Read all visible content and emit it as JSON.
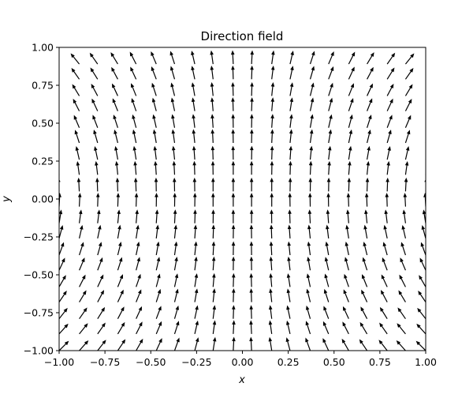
{
  "chart_data": {
    "type": "quiver",
    "title": "Direction field",
    "x_label": "x",
    "y_label": "y",
    "x": [
      -1,
      -0.89,
      -0.79,
      -0.68,
      -0.58,
      -0.47,
      -0.37,
      -0.26,
      -0.16,
      -0.05,
      0.05,
      0.16,
      0.26,
      0.37,
      0.47,
      0.58,
      0.68,
      0.79,
      0.89,
      1
    ],
    "y": [
      -1,
      -0.89,
      -0.79,
      -0.68,
      -0.58,
      -0.47,
      -0.37,
      -0.26,
      -0.16,
      -0.05,
      0.05,
      0.16,
      0.26,
      0.37,
      0.47,
      0.58,
      0.68,
      0.79,
      0.89,
      1
    ],
    "angles": [
      [
        45,
        48,
        52,
        56,
        60,
        65,
        70,
        75,
        81,
        87,
        93,
        99,
        105,
        110,
        115,
        120,
        124,
        128,
        132,
        135
      ],
      [
        48,
        51,
        55,
        59,
        63,
        67,
        72,
        77,
        82,
        87,
        93,
        98,
        103,
        108,
        113,
        117,
        121,
        125,
        129,
        132
      ],
      [
        52,
        55,
        58,
        62,
        65,
        69,
        74,
        78,
        83,
        88,
        92,
        97,
        102,
        106,
        111,
        115,
        118,
        122,
        125,
        128
      ],
      [
        56,
        59,
        62,
        65,
        68,
        72,
        76,
        80,
        84,
        88,
        92,
        96,
        100,
        104,
        108,
        112,
        115,
        118,
        121,
        124
      ],
      [
        60,
        63,
        65,
        68,
        71,
        75,
        78,
        81,
        85,
        88,
        92,
        95,
        99,
        102,
        105,
        109,
        112,
        115,
        117,
        120
      ],
      [
        65,
        67,
        69,
        72,
        75,
        77,
        80,
        83,
        86,
        89,
        91,
        94,
        97,
        100,
        103,
        105,
        108,
        111,
        113,
        115
      ],
      [
        70,
        72,
        74,
        76,
        78,
        80,
        82,
        84,
        87,
        89,
        91,
        93,
        96,
        98,
        100,
        102,
        104,
        106,
        108,
        110
      ],
      [
        75,
        77,
        78,
        80,
        81,
        83,
        84,
        86,
        88,
        89,
        91,
        92,
        94,
        96,
        97,
        99,
        100,
        102,
        103,
        105
      ],
      [
        81,
        82,
        83,
        84,
        85,
        86,
        87,
        88,
        89,
        90,
        90,
        91,
        92,
        93,
        94,
        95,
        96,
        97,
        98,
        99
      ],
      [
        87,
        87,
        88,
        88,
        88,
        89,
        89,
        89,
        90,
        90,
        90,
        90,
        91,
        91,
        91,
        92,
        92,
        92,
        93,
        93
      ],
      [
        93,
        93,
        92,
        92,
        92,
        91,
        91,
        91,
        90,
        90,
        90,
        90,
        89,
        89,
        89,
        88,
        88,
        88,
        87,
        87
      ],
      [
        99,
        98,
        97,
        96,
        95,
        94,
        93,
        92,
        91,
        90,
        90,
        89,
        88,
        87,
        86,
        85,
        84,
        83,
        82,
        81
      ],
      [
        105,
        103,
        102,
        100,
        99,
        97,
        96,
        94,
        92,
        91,
        89,
        88,
        86,
        84,
        83,
        81,
        80,
        78,
        77,
        75
      ],
      [
        110,
        108,
        106,
        104,
        102,
        100,
        98,
        96,
        93,
        91,
        89,
        87,
        84,
        82,
        80,
        78,
        76,
        74,
        72,
        70
      ],
      [
        115,
        113,
        111,
        108,
        105,
        103,
        100,
        97,
        94,
        91,
        89,
        86,
        83,
        80,
        77,
        75,
        72,
        69,
        67,
        65
      ],
      [
        120,
        117,
        115,
        112,
        109,
        105,
        102,
        99,
        95,
        92,
        88,
        85,
        81,
        78,
        75,
        71,
        68,
        65,
        63,
        60
      ],
      [
        124,
        121,
        118,
        115,
        112,
        108,
        104,
        100,
        96,
        92,
        88,
        84,
        80,
        76,
        72,
        68,
        65,
        62,
        59,
        56
      ],
      [
        128,
        125,
        122,
        118,
        115,
        111,
        106,
        102,
        97,
        92,
        88,
        83,
        78,
        74,
        69,
        65,
        62,
        58,
        55,
        52
      ],
      [
        132,
        129,
        125,
        121,
        117,
        113,
        108,
        103,
        98,
        93,
        87,
        82,
        77,
        72,
        67,
        63,
        59,
        55,
        51,
        48
      ],
      [
        135,
        132,
        128,
        124,
        120,
        115,
        110,
        105,
        99,
        93,
        87,
        81,
        75,
        70,
        65,
        60,
        56,
        52,
        48,
        45
      ]
    ],
    "color": "#000000",
    "xlim": [
      -1,
      1
    ],
    "ylim": [
      -1,
      1
    ],
    "xticks": [
      {
        "value": -1,
        "label": "−1.00"
      },
      {
        "value": -0.75,
        "label": "−0.75"
      },
      {
        "value": -0.5,
        "label": "−0.50"
      },
      {
        "value": -0.25,
        "label": "−0.25"
      },
      {
        "value": 0,
        "label": "0.00"
      },
      {
        "value": 0.25,
        "label": "0.25"
      },
      {
        "value": 0.5,
        "label": "0.50"
      },
      {
        "value": 0.75,
        "label": "0.75"
      },
      {
        "value": 1,
        "label": "1.00"
      }
    ],
    "yticks": [
      {
        "value": -1,
        "label": "−1.00"
      },
      {
        "value": -0.75,
        "label": "−0.75"
      },
      {
        "value": -0.5,
        "label": "−0.50"
      },
      {
        "value": -0.25,
        "label": "−0.25"
      },
      {
        "value": 0,
        "label": "0.00"
      },
      {
        "value": 0.25,
        "label": "0.25"
      },
      {
        "value": 0.5,
        "label": "0.50"
      },
      {
        "value": 0.75,
        "label": "0.75"
      },
      {
        "value": 1,
        "label": "1.00"
      }
    ],
    "grid": false
  }
}
